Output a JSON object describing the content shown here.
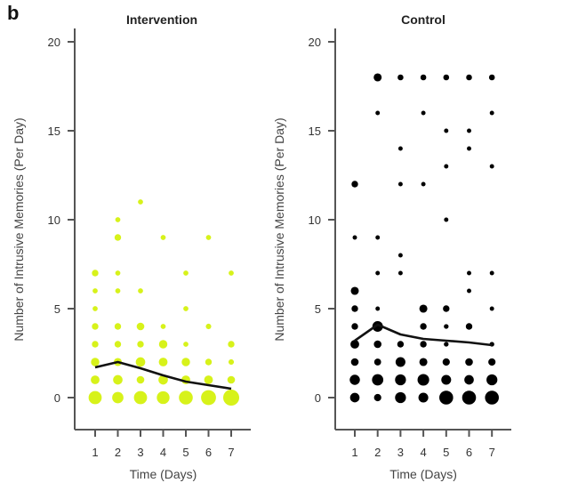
{
  "panel_label": "b",
  "chart_data": [
    {
      "type": "scatter",
      "subtype": "bubble-with-mean-line",
      "title": "Intervention",
      "xlabel": "Time (Days)",
      "ylabel": "Number of Intrusive Memories (Per Day)",
      "x_ticks": [
        1,
        2,
        3,
        4,
        5,
        6,
        7
      ],
      "y_ticks": [
        0,
        5,
        10,
        15,
        20
      ],
      "xlim": [
        1,
        7
      ],
      "ylim": [
        0,
        20
      ],
      "grid": false,
      "color": "#d7f21a",
      "points": [
        {
          "x": 1,
          "y": 0,
          "size": 3.6
        },
        {
          "x": 2,
          "y": 0,
          "size": 3.1
        },
        {
          "x": 3,
          "y": 0,
          "size": 3.6
        },
        {
          "x": 4,
          "y": 0,
          "size": 3.5
        },
        {
          "x": 5,
          "y": 0,
          "size": 3.8
        },
        {
          "x": 6,
          "y": 0,
          "size": 4.1
        },
        {
          "x": 7,
          "y": 0,
          "size": 4.4
        },
        {
          "x": 1,
          "y": 1,
          "size": 2.4
        },
        {
          "x": 2,
          "y": 1,
          "size": 2.6
        },
        {
          "x": 3,
          "y": 1,
          "size": 2.1
        },
        {
          "x": 4,
          "y": 1,
          "size": 2.6
        },
        {
          "x": 5,
          "y": 1,
          "size": 2.4
        },
        {
          "x": 6,
          "y": 1,
          "size": 2.4
        },
        {
          "x": 7,
          "y": 1,
          "size": 2.1
        },
        {
          "x": 1,
          "y": 2,
          "size": 2.3
        },
        {
          "x": 2,
          "y": 2,
          "size": 2.2
        },
        {
          "x": 3,
          "y": 2,
          "size": 2.6
        },
        {
          "x": 4,
          "y": 2,
          "size": 2.4
        },
        {
          "x": 5,
          "y": 2,
          "size": 2.3
        },
        {
          "x": 6,
          "y": 2,
          "size": 1.8
        },
        {
          "x": 7,
          "y": 2,
          "size": 1.5
        },
        {
          "x": 1,
          "y": 3,
          "size": 1.8
        },
        {
          "x": 2,
          "y": 3,
          "size": 1.8
        },
        {
          "x": 3,
          "y": 3,
          "size": 1.8
        },
        {
          "x": 4,
          "y": 3,
          "size": 2.3
        },
        {
          "x": 5,
          "y": 3,
          "size": 1.4
        },
        {
          "x": 7,
          "y": 3,
          "size": 1.8
        },
        {
          "x": 1,
          "y": 4,
          "size": 1.8
        },
        {
          "x": 2,
          "y": 4,
          "size": 1.8
        },
        {
          "x": 3,
          "y": 4,
          "size": 2.1
        },
        {
          "x": 4,
          "y": 4,
          "size": 1.4
        },
        {
          "x": 6,
          "y": 4,
          "size": 1.5
        },
        {
          "x": 1,
          "y": 5,
          "size": 1.4
        },
        {
          "x": 5,
          "y": 5,
          "size": 1.4
        },
        {
          "x": 1,
          "y": 6,
          "size": 1.4
        },
        {
          "x": 2,
          "y": 6,
          "size": 1.4
        },
        {
          "x": 3,
          "y": 6,
          "size": 1.4
        },
        {
          "x": 1,
          "y": 7,
          "size": 1.8
        },
        {
          "x": 2,
          "y": 7,
          "size": 1.4
        },
        {
          "x": 5,
          "y": 7,
          "size": 1.4
        },
        {
          "x": 7,
          "y": 7,
          "size": 1.4
        },
        {
          "x": 2,
          "y": 9,
          "size": 1.8
        },
        {
          "x": 4,
          "y": 9,
          "size": 1.4
        },
        {
          "x": 6,
          "y": 9,
          "size": 1.4
        },
        {
          "x": 2,
          "y": 10,
          "size": 1.4
        },
        {
          "x": 3,
          "y": 11,
          "size": 1.4
        }
      ],
      "mean_line": {
        "x": [
          1,
          2,
          3,
          4,
          5,
          6,
          7
        ],
        "y": [
          1.7,
          2.0,
          1.65,
          1.25,
          0.9,
          0.7,
          0.5
        ]
      }
    },
    {
      "type": "scatter",
      "subtype": "bubble-with-mean-line",
      "title": "Control",
      "xlabel": "Time (Days)",
      "ylabel": "Number of Intrusive Memories (Per Day)",
      "x_ticks": [
        1,
        2,
        3,
        4,
        5,
        6,
        7
      ],
      "y_ticks": [
        0,
        5,
        10,
        15,
        20
      ],
      "xlim": [
        1,
        7
      ],
      "ylim": [
        0,
        20
      ],
      "grid": false,
      "color": "#000000",
      "points": [
        {
          "x": 1,
          "y": 0,
          "size": 2.6
        },
        {
          "x": 2,
          "y": 0,
          "size": 2.0
        },
        {
          "x": 3,
          "y": 0,
          "size": 3.0
        },
        {
          "x": 4,
          "y": 0,
          "size": 2.7
        },
        {
          "x": 5,
          "y": 0,
          "size": 3.8
        },
        {
          "x": 6,
          "y": 0,
          "size": 3.8
        },
        {
          "x": 7,
          "y": 0,
          "size": 3.8
        },
        {
          "x": 1,
          "y": 1,
          "size": 2.8
        },
        {
          "x": 2,
          "y": 1,
          "size": 3.1
        },
        {
          "x": 3,
          "y": 1,
          "size": 3.0
        },
        {
          "x": 4,
          "y": 1,
          "size": 3.2
        },
        {
          "x": 5,
          "y": 1,
          "size": 2.7
        },
        {
          "x": 6,
          "y": 1,
          "size": 2.6
        },
        {
          "x": 7,
          "y": 1,
          "size": 3.0
        },
        {
          "x": 1,
          "y": 2,
          "size": 2.1
        },
        {
          "x": 2,
          "y": 2,
          "size": 1.9
        },
        {
          "x": 3,
          "y": 2,
          "size": 2.7
        },
        {
          "x": 4,
          "y": 2,
          "size": 2.2
        },
        {
          "x": 5,
          "y": 2,
          "size": 2.0
        },
        {
          "x": 6,
          "y": 2,
          "size": 2.1
        },
        {
          "x": 7,
          "y": 2,
          "size": 2.0
        },
        {
          "x": 1,
          "y": 3,
          "size": 2.4
        },
        {
          "x": 2,
          "y": 3,
          "size": 2.1
        },
        {
          "x": 3,
          "y": 3,
          "size": 1.8
        },
        {
          "x": 4,
          "y": 3,
          "size": 1.8
        },
        {
          "x": 5,
          "y": 3,
          "size": 1.3
        },
        {
          "x": 7,
          "y": 3,
          "size": 1.3
        },
        {
          "x": 1,
          "y": 4,
          "size": 1.8
        },
        {
          "x": 2,
          "y": 4,
          "size": 2.9
        },
        {
          "x": 4,
          "y": 4,
          "size": 1.8
        },
        {
          "x": 5,
          "y": 4,
          "size": 1.3
        },
        {
          "x": 6,
          "y": 4,
          "size": 1.8
        },
        {
          "x": 1,
          "y": 5,
          "size": 1.8
        },
        {
          "x": 2,
          "y": 5,
          "size": 1.2
        },
        {
          "x": 4,
          "y": 5,
          "size": 2.2
        },
        {
          "x": 5,
          "y": 5,
          "size": 1.8
        },
        {
          "x": 7,
          "y": 5,
          "size": 1.2
        },
        {
          "x": 1,
          "y": 6,
          "size": 2.2
        },
        {
          "x": 6,
          "y": 6,
          "size": 1.2
        },
        {
          "x": 2,
          "y": 7,
          "size": 1.2
        },
        {
          "x": 3,
          "y": 7,
          "size": 1.2
        },
        {
          "x": 6,
          "y": 7,
          "size": 1.2
        },
        {
          "x": 7,
          "y": 7,
          "size": 1.2
        },
        {
          "x": 3,
          "y": 8,
          "size": 1.2
        },
        {
          "x": 1,
          "y": 9,
          "size": 1.2
        },
        {
          "x": 2,
          "y": 9,
          "size": 1.2
        },
        {
          "x": 5,
          "y": 10,
          "size": 1.2
        },
        {
          "x": 1,
          "y": 12,
          "size": 1.8
        },
        {
          "x": 3,
          "y": 12,
          "size": 1.2
        },
        {
          "x": 4,
          "y": 12,
          "size": 1.2
        },
        {
          "x": 5,
          "y": 13,
          "size": 1.2
        },
        {
          "x": 7,
          "y": 13,
          "size": 1.2
        },
        {
          "x": 3,
          "y": 14,
          "size": 1.2
        },
        {
          "x": 6,
          "y": 14,
          "size": 1.2
        },
        {
          "x": 5,
          "y": 15,
          "size": 1.2
        },
        {
          "x": 6,
          "y": 15,
          "size": 1.2
        },
        {
          "x": 2,
          "y": 16,
          "size": 1.2
        },
        {
          "x": 4,
          "y": 16,
          "size": 1.2
        },
        {
          "x": 7,
          "y": 16,
          "size": 1.2
        },
        {
          "x": 2,
          "y": 18,
          "size": 2.2
        },
        {
          "x": 3,
          "y": 18,
          "size": 1.6
        },
        {
          "x": 4,
          "y": 18,
          "size": 1.6
        },
        {
          "x": 5,
          "y": 18,
          "size": 1.6
        },
        {
          "x": 6,
          "y": 18,
          "size": 1.6
        },
        {
          "x": 7,
          "y": 18,
          "size": 1.6
        }
      ],
      "mean_line": {
        "x": [
          1,
          2,
          3,
          4,
          5,
          6,
          7
        ],
        "y": [
          3.2,
          4.1,
          3.55,
          3.3,
          3.2,
          3.1,
          2.95
        ]
      }
    }
  ]
}
